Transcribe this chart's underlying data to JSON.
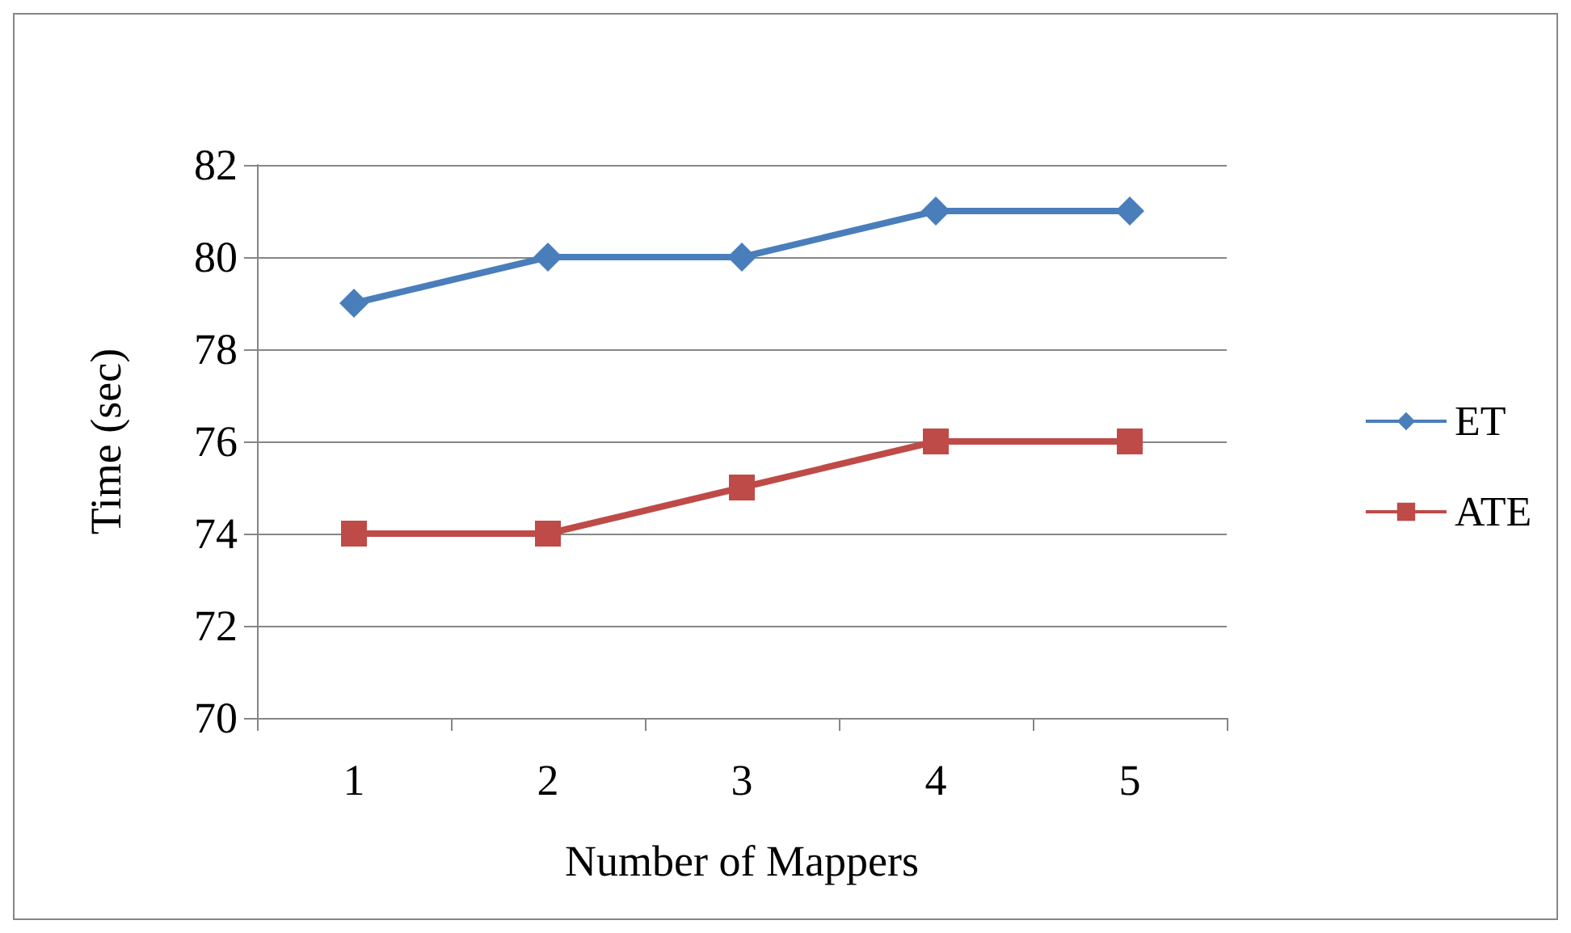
{
  "chart_data": {
    "type": "line",
    "xlabel": "Number of Mappers",
    "ylabel": "Time (sec)",
    "categories": [
      "1",
      "2",
      "3",
      "4",
      "5"
    ],
    "series": [
      {
        "name": "ET",
        "color": "#4a7ebb",
        "marker": "diamond",
        "values": [
          79,
          80,
          80,
          81,
          81
        ]
      },
      {
        "name": "ATE",
        "color": "#be4b48",
        "marker": "square",
        "values": [
          74,
          74,
          75,
          76,
          76
        ]
      }
    ],
    "ylim": [
      70,
      82
    ],
    "yticks": [
      70,
      72,
      74,
      76,
      78,
      80,
      82
    ],
    "grid": "y",
    "legend": "right"
  }
}
